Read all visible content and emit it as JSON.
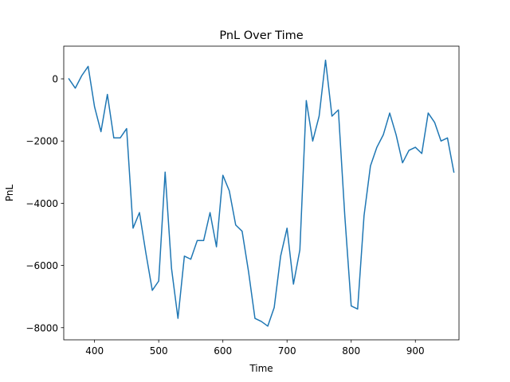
{
  "chart_data": {
    "type": "line",
    "title": "PnL Over Time",
    "xlabel": "Time",
    "ylabel": "PnL",
    "xlim": [
      352,
      968
    ],
    "ylim": [
      -8390,
      1050
    ],
    "xticks": [
      400,
      500,
      600,
      700,
      800,
      900
    ],
    "xtick_labels": [
      "400",
      "500",
      "600",
      "700",
      "800",
      "900"
    ],
    "yticks": [
      -8000,
      -6000,
      -4000,
      -2000,
      0
    ],
    "ytick_labels": [
      "−8000",
      "−6000",
      "−4000",
      "−2000",
      "0"
    ],
    "grid": false,
    "series_color": "#1f77b4",
    "x": [
      360,
      370,
      380,
      390,
      400,
      410,
      420,
      430,
      440,
      450,
      460,
      470,
      480,
      490,
      500,
      510,
      520,
      530,
      540,
      550,
      560,
      570,
      580,
      590,
      600,
      610,
      620,
      630,
      640,
      650,
      660,
      670,
      680,
      690,
      700,
      710,
      720,
      730,
      740,
      750,
      760,
      770,
      780,
      790,
      800,
      810,
      820,
      830,
      840,
      850,
      860,
      870,
      880,
      890,
      900,
      910,
      920,
      930,
      940,
      950,
      960
    ],
    "y": [
      0,
      -300,
      100,
      400,
      -900,
      -1700,
      -500,
      -1900,
      -1900,
      -1600,
      -4800,
      -4300,
      -5600,
      -6800,
      -6500,
      -3000,
      -6100,
      -7700,
      -5700,
      -5800,
      -5200,
      -5200,
      -4300,
      -5400,
      -3100,
      -3600,
      -4700,
      -4900,
      -6200,
      -7700,
      -7800,
      -7950,
      -7350,
      -5700,
      -4800,
      -6600,
      -5500,
      -700,
      -2000,
      -1200,
      600,
      -1200,
      -1000,
      -4400,
      -7300,
      -7400,
      -4400,
      -2800,
      -2200,
      -1800,
      -1100,
      -1800,
      -2700,
      -2300,
      -2200,
      -2400,
      -1100,
      -1400,
      -2000,
      -1900,
      -3000
    ]
  }
}
